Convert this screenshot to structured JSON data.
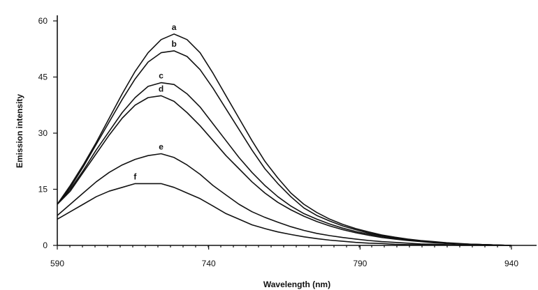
{
  "chart_data": {
    "type": "line",
    "title": "",
    "xlabel": "Wavelength (nm)",
    "ylabel": "Emission intensity",
    "xlim": [
      590,
      940
    ],
    "ylim": [
      0,
      60
    ],
    "x_ticks": [
      590,
      740,
      790,
      940
    ],
    "x_tick_labels": [
      "590",
      "740",
      "790",
      "940"
    ],
    "y_ticks": [
      0,
      15,
      30,
      45,
      60
    ],
    "y_tick_labels": [
      "0",
      "15",
      "30",
      "45",
      "60"
    ],
    "grid": false,
    "legend": "none",
    "series": [
      {
        "label": "a",
        "x": [
          590,
          600,
          610,
          620,
          630,
          640,
          650,
          660,
          670,
          680,
          690,
          700,
          710,
          720,
          730,
          740,
          750,
          760,
          770,
          780,
          790,
          800,
          810,
          820,
          830,
          840,
          850,
          860,
          870,
          880,
          890,
          900,
          910,
          920,
          930,
          940
        ],
        "y": [
          11,
          16,
          21.5,
          27.5,
          34,
          40.5,
          46.5,
          51.5,
          55,
          56.5,
          55,
          51.5,
          46,
          40,
          34,
          28,
          22.5,
          18,
          14,
          11,
          8.8,
          7,
          5.6,
          4.5,
          3.6,
          2.8,
          2.2,
          1.7,
          1.3,
          1,
          0.7,
          0.5,
          0.3,
          0.2,
          0.1,
          0
        ]
      },
      {
        "label": "b",
        "x": [
          590,
          600,
          610,
          620,
          630,
          640,
          650,
          660,
          670,
          680,
          690,
          700,
          710,
          720,
          730,
          740,
          750,
          760,
          770,
          780,
          790,
          800,
          810,
          820,
          830,
          840,
          850,
          860,
          870,
          880,
          890,
          900,
          910,
          920,
          930,
          940
        ],
        "y": [
          11,
          15.5,
          21,
          27,
          33,
          39,
          44.5,
          49,
          51.5,
          52,
          50.5,
          47,
          42,
          36.5,
          31,
          25.5,
          20.5,
          16.5,
          13,
          10,
          8,
          6.5,
          5.2,
          4.2,
          3.3,
          2.6,
          2,
          1.6,
          1.2,
          0.9,
          0.6,
          0.4,
          0.3,
          0.2,
          0.1,
          0
        ]
      },
      {
        "label": "c",
        "x": [
          590,
          600,
          610,
          620,
          630,
          640,
          650,
          660,
          670,
          680,
          690,
          700,
          710,
          720,
          730,
          740,
          750,
          760,
          770,
          780,
          790,
          800,
          810,
          820,
          830,
          840,
          850,
          860,
          870,
          880,
          890,
          900,
          910,
          920,
          930,
          940
        ],
        "y": [
          11,
          15,
          20,
          25.5,
          30.5,
          35.5,
          39.5,
          42.5,
          43.5,
          43,
          40.5,
          37,
          32.5,
          28,
          23.5,
          19.5,
          16,
          13,
          10.5,
          8.5,
          7,
          5.7,
          4.6,
          3.7,
          3,
          2.4,
          1.9,
          1.5,
          1.1,
          0.8,
          0.6,
          0.4,
          0.3,
          0.2,
          0.1,
          0
        ]
      },
      {
        "label": "d",
        "x": [
          590,
          600,
          610,
          620,
          630,
          640,
          650,
          660,
          670,
          680,
          690,
          700,
          710,
          720,
          730,
          740,
          750,
          760,
          770,
          780,
          790,
          800,
          810,
          820,
          830,
          840,
          850,
          860,
          870,
          880,
          890,
          900,
          910,
          920,
          930,
          940
        ],
        "y": [
          11,
          14.5,
          19.5,
          24.5,
          29.5,
          34,
          37.5,
          39.5,
          40,
          38.5,
          35.5,
          32,
          28,
          24,
          20.5,
          17,
          14,
          11.5,
          9.5,
          7.8,
          6.4,
          5.2,
          4.2,
          3.4,
          2.7,
          2.1,
          1.7,
          1.3,
          1,
          0.7,
          0.5,
          0.4,
          0.3,
          0.2,
          0.1,
          0
        ]
      },
      {
        "label": "e",
        "x": [
          590,
          600,
          610,
          620,
          630,
          640,
          650,
          660,
          670,
          680,
          690,
          700,
          710,
          720,
          730,
          740,
          750,
          760,
          770,
          780,
          790,
          800,
          810,
          820,
          830,
          840,
          850,
          860,
          870,
          880,
          890,
          900,
          910,
          920,
          930,
          940
        ],
        "y": [
          8,
          11,
          14,
          17,
          19.5,
          21.5,
          23,
          24,
          24.5,
          23.5,
          21.5,
          19,
          16,
          13.5,
          11,
          9,
          7.5,
          6.2,
          5,
          4,
          3.2,
          2.6,
          2.1,
          1.7,
          1.3,
          1,
          0.8,
          0.6,
          0.4,
          0.3,
          0.2,
          0.1,
          0.1,
          0,
          0,
          0
        ]
      },
      {
        "label": "f",
        "x": [
          590,
          600,
          610,
          620,
          630,
          640,
          650,
          660,
          670,
          680,
          690,
          700,
          710,
          720,
          730,
          740,
          750,
          760,
          770,
          780,
          790,
          800,
          810,
          820,
          830,
          840,
          850,
          860,
          870,
          880,
          890,
          900,
          910,
          920,
          930,
          940
        ],
        "y": [
          7,
          9,
          11,
          13,
          14.5,
          15.5,
          16.5,
          16.5,
          16.5,
          15.5,
          14,
          12.5,
          10.5,
          8.5,
          7,
          5.5,
          4.5,
          3.6,
          2.9,
          2.3,
          1.8,
          1.4,
          1.1,
          0.8,
          0.6,
          0.5,
          0.3,
          0.2,
          0.2,
          0.1,
          0.1,
          0,
          0,
          0,
          0,
          0
        ]
      }
    ]
  }
}
